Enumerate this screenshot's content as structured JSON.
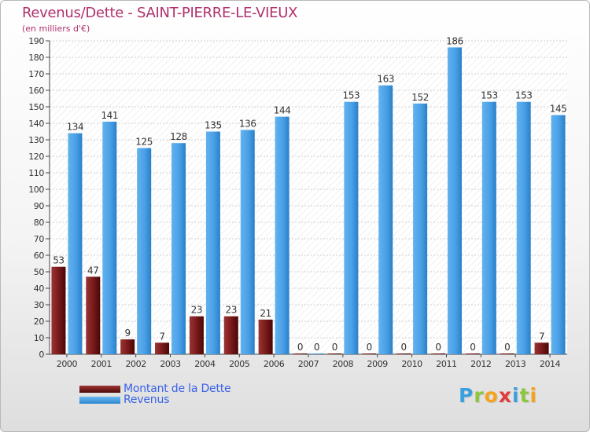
{
  "title": "Revenus/Dette - SAINT-PIERRE-LE-VIEUX",
  "subtitle": "(en milliers d'€)",
  "logo": {
    "letters": [
      {
        "ch": "P",
        "color": "#3aa0e0"
      },
      {
        "ch": "r",
        "color": "#8cc63f"
      },
      {
        "ch": "o",
        "color": "#f7a21b"
      },
      {
        "ch": "x",
        "color": "#e03c3c"
      },
      {
        "ch": "i",
        "color": "#3aa0e0"
      },
      {
        "ch": "t",
        "color": "#8cc63f"
      },
      {
        "ch": "i",
        "color": "#f7a21b"
      }
    ]
  },
  "legend": {
    "debt_label": "Montant de la Dette",
    "revenue_label": "Revenus"
  },
  "colors": {
    "debt": "#6e1414",
    "revenue": "#4aa0e6",
    "accent_text": "#b0306e",
    "legend_text": "#3a62e8"
  },
  "chart_data": {
    "type": "bar",
    "title": "Revenus/Dette - SAINT-PIERRE-LE-VIEUX",
    "subtitle": "(en milliers d'€)",
    "categories": [
      "2000",
      "2001",
      "2002",
      "2003",
      "2004",
      "2005",
      "2006",
      "2007",
      "2008",
      "2009",
      "2010",
      "2011",
      "2012",
      "2013",
      "2014"
    ],
    "series": [
      {
        "name": "Montant de la Dette",
        "values": [
          53,
          47,
          9,
          7,
          23,
          23,
          21,
          0,
          0,
          0,
          0,
          0,
          0,
          0,
          7
        ]
      },
      {
        "name": "Revenus",
        "values": [
          134,
          141,
          125,
          128,
          135,
          136,
          144,
          0,
          153,
          163,
          152,
          186,
          153,
          153,
          145
        ]
      }
    ],
    "ylim": [
      0,
      190
    ],
    "yticks": [
      0,
      10,
      20,
      30,
      40,
      50,
      60,
      70,
      80,
      90,
      100,
      110,
      120,
      130,
      140,
      150,
      160,
      170,
      180,
      190
    ],
    "grid": true,
    "legend_position": "bottom-left"
  }
}
